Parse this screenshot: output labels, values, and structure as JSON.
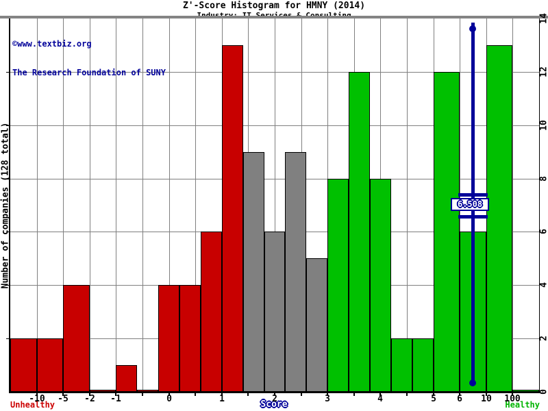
{
  "header": {
    "title": "Z'-Score Histogram for HMNY (2014)",
    "subtitle": "Industry: IT Services & Consulting"
  },
  "watermark": {
    "line1": "©www.textbiz.org",
    "line2": "The Research Foundation of SUNY"
  },
  "axes": {
    "y_left_title": "Number of companies (128 total)",
    "x_title": "Score",
    "zone_labels": {
      "left": "Unhealthy",
      "right": "Healthy"
    },
    "x_ticks": [
      {
        "label": "-10",
        "unit": 1
      },
      {
        "label": "-5",
        "unit": 2
      },
      {
        "label": "-2",
        "unit": 3
      },
      {
        "label": "-1",
        "unit": 4
      },
      {
        "label": "0",
        "unit": 6
      },
      {
        "label": "1",
        "unit": 8
      },
      {
        "label": "2",
        "unit": 10
      },
      {
        "label": "3",
        "unit": 12
      },
      {
        "label": "4",
        "unit": 14
      },
      {
        "label": "5",
        "unit": 16
      },
      {
        "label": "6",
        "unit": 17
      },
      {
        "label": "10",
        "unit": 18
      },
      {
        "label": "100",
        "unit": 19
      }
    ],
    "y_right_ticks": [
      {
        "label": "0",
        "value": 0
      },
      {
        "label": "2",
        "value": 2
      },
      {
        "label": "4",
        "value": 4
      },
      {
        "label": "6",
        "value": 6
      },
      {
        "label": "8",
        "value": 8
      },
      {
        "label": "10",
        "value": 10
      },
      {
        "label": "12",
        "value": 12
      },
      {
        "label": "14",
        "value": 14
      }
    ]
  },
  "marker": {
    "label": "6.508",
    "value": 6.508
  },
  "colors": {
    "distress": "#c80000",
    "gray": "#808080",
    "safe": "#00c000",
    "annotation": "#000099",
    "grid": "#7f7f7f",
    "axis": "#000000",
    "top_border": "#848484",
    "background": "#ffffff"
  },
  "chart_data": {
    "type": "bar",
    "title": "Z'-Score Histogram for HMNY (2014)",
    "subtitle": "Industry: IT Services & Consulting",
    "xlabel": "Score",
    "ylabel": "Number of companies (128 total)",
    "total_companies": 128,
    "ylim": [
      0,
      14
    ],
    "grid": true,
    "legend": "none",
    "x_scale_note": "nonlinear piecewise x scale; labeled ticks at -10,-5,-2,-1,0,1,2,3,4,5,6,10,100",
    "marker_value": 6.508,
    "bins": [
      {
        "range": "< -10",
        "count": 2,
        "zone": "distress",
        "width_units": 1
      },
      {
        "range": "-10 to -5",
        "count": 2,
        "zone": "distress",
        "width_units": 1
      },
      {
        "range": "-5 to -2",
        "count": 4,
        "zone": "distress",
        "width_units": 1
      },
      {
        "range": "-2 to -1",
        "count": 0,
        "zone": "distress",
        "width_units": 1
      },
      {
        "range": "-1 to -0.6",
        "count": 1,
        "zone": "distress",
        "width_units": 0.8
      },
      {
        "range": "-0.6 to -0.2",
        "count": 0,
        "zone": "distress",
        "width_units": 0.8
      },
      {
        "range": "-0.2 to 0.2",
        "count": 4,
        "zone": "distress",
        "width_units": 0.8
      },
      {
        "range": "0.2 to 0.6",
        "count": 4,
        "zone": "distress",
        "width_units": 0.8
      },
      {
        "range": "0.6 to 1",
        "count": 6,
        "zone": "distress",
        "width_units": 0.8
      },
      {
        "range": "1 to 1.4",
        "count": 13,
        "zone": "distress",
        "width_units": 0.8
      },
      {
        "range": "1.4 to 1.8",
        "count": 9,
        "zone": "gray",
        "width_units": 0.8
      },
      {
        "range": "1.8 to 2.2",
        "count": 6,
        "zone": "gray",
        "width_units": 0.8
      },
      {
        "range": "2.2 to 2.6",
        "count": 9,
        "zone": "gray",
        "width_units": 0.8
      },
      {
        "range": "2.6 to 3",
        "count": 5,
        "zone": "gray",
        "width_units": 0.8
      },
      {
        "range": "3 to 3.4",
        "count": 8,
        "zone": "safe",
        "width_units": 0.8
      },
      {
        "range": "3.4 to 3.8",
        "count": 12,
        "zone": "safe",
        "width_units": 0.8
      },
      {
        "range": "3.8 to 4.2",
        "count": 8,
        "zone": "safe",
        "width_units": 0.8
      },
      {
        "range": "4.2 to 4.6",
        "count": 2,
        "zone": "safe",
        "width_units": 0.8
      },
      {
        "range": "4.6 to 5",
        "count": 2,
        "zone": "safe",
        "width_units": 0.8
      },
      {
        "range": "5 to 6",
        "count": 12,
        "zone": "safe",
        "width_units": 1
      },
      {
        "range": "6 to 10",
        "count": 6,
        "zone": "safe",
        "width_units": 1
      },
      {
        "range": "10 to 100",
        "count": 13,
        "zone": "safe",
        "width_units": 1
      },
      {
        "range": "> 100",
        "count": 0,
        "zone": "safe",
        "width_units": 1
      }
    ]
  }
}
